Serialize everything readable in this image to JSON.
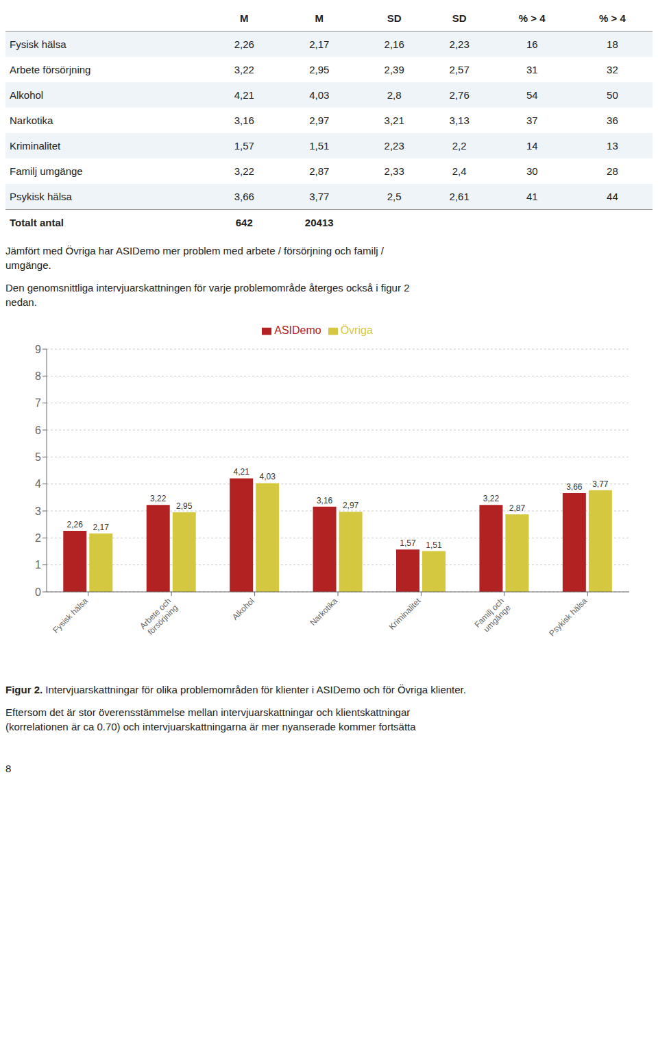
{
  "table": {
    "headers": [
      null,
      "M",
      "M",
      "SD",
      "SD",
      "% > 4",
      "% > 4"
    ],
    "rows": [
      [
        "Fysisk hälsa",
        "2,26",
        "2,17",
        "2,16",
        "2,23",
        "16",
        "18"
      ],
      [
        "Arbete försörjning",
        "3,22",
        "2,95",
        "2,39",
        "2,57",
        "31",
        "32"
      ],
      [
        "Alkohol",
        "4,21",
        "4,03",
        "2,8",
        "2,76",
        "54",
        "50"
      ],
      [
        "Narkotika",
        "3,16",
        "2,97",
        "3,21",
        "3,13",
        "37",
        "36"
      ],
      [
        "Kriminalitet",
        "1,57",
        "1,51",
        "2,23",
        "2,2",
        "14",
        "13"
      ],
      [
        "Familj umgänge",
        "3,22",
        "2,87",
        "2,33",
        "2,4",
        "30",
        "28"
      ],
      [
        "Psykisk hälsa",
        "3,66",
        "3,77",
        "2,5",
        "2,61",
        "41",
        "44"
      ]
    ],
    "total_row": [
      "Totalt antal",
      "642",
      "20413"
    ]
  },
  "texts": {
    "text_above_chart": "Jämfört med Övriga har ASIDemo mer problem med arbete / försörjning och familj /\numgänge.",
    "text_before_chart": "Den genomsnittliga intervjuarskattningen för varje problemområde återges också i figur 2\nnedan.",
    "caption_bold": "Figur 2.",
    "caption_text": " Intervjuarskattningar för olika problemområden för klienter i ASIDemo och för Övriga klienter.",
    "footer_text": "Eftersom det är stor överensstämmelse mellan intervjuarskattningar och klientskattningar\n(korrelationen är ca 0.70) och intervjuarskattningarna är mer nyanserade kommer fortsätta",
    "page_number": "8"
  },
  "chart_data": {
    "type": "bar",
    "categories": [
      "Fysisk hälsa",
      "Arbete och\nförsörjning",
      "Alkohol",
      "Narkotika",
      "Kriminalitet",
      "Familj och\numgänge",
      "Psykisk hälsa"
    ],
    "series": [
      {
        "name": "ASIDemo",
        "color": "#b22222",
        "values": [
          2.26,
          3.22,
          4.21,
          3.16,
          1.57,
          3.22,
          3.66
        ],
        "value_labels": [
          "2,26",
          "3,22",
          "4,21",
          "3,16",
          "1,57",
          "3,22",
          "3,66"
        ]
      },
      {
        "name": "Övriga",
        "color": "#d4c840",
        "values": [
          2.17,
          2.95,
          4.03,
          2.97,
          1.51,
          2.87,
          3.77
        ],
        "value_labels": [
          "2,17",
          "2,95",
          "4,03",
          "2,97",
          "1,51",
          "2,87",
          "3,77"
        ]
      }
    ],
    "ylim": [
      0,
      9
    ],
    "yticks": [
      0,
      1,
      2,
      3,
      4,
      5,
      6,
      7,
      8,
      9
    ],
    "grid": true,
    "legend": "top",
    "data_labels": true
  }
}
